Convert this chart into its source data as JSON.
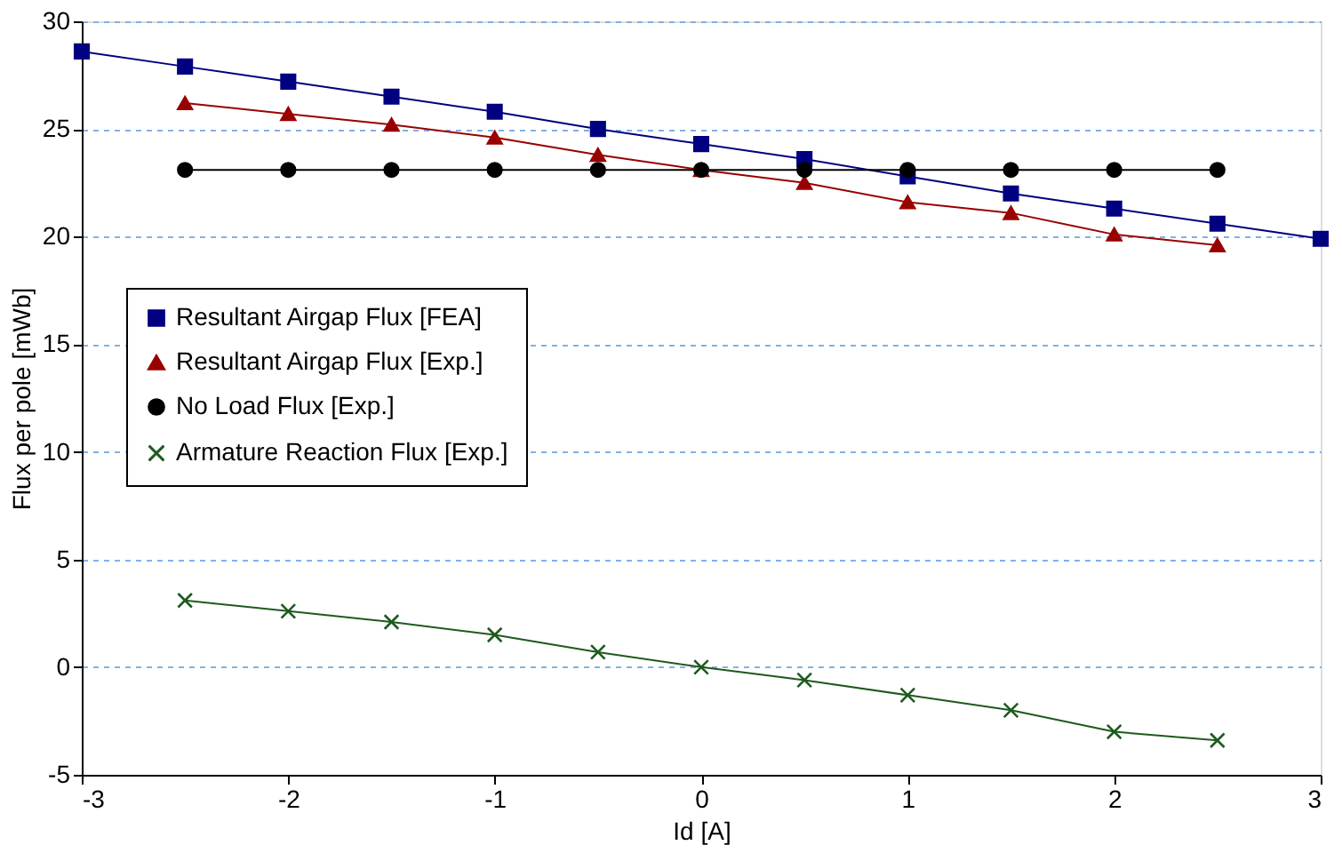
{
  "chart_data": {
    "type": "line",
    "xlabel": "Id [A]",
    "ylabel": "Flux per pole [mWb]",
    "xlim": [
      -3,
      3
    ],
    "xticks": [
      -3,
      -2,
      -1,
      0,
      1,
      2,
      3
    ],
    "ylim": [
      -5,
      30
    ],
    "yticks": [
      -5,
      0,
      5,
      10,
      15,
      20,
      25,
      30
    ],
    "grid": "y",
    "legend": "left",
    "series": [
      {
        "name": "Resultant Airgap Flux [FEA]",
        "color": "#000080",
        "marker": "square",
        "x": [
          -3,
          -2.5,
          -2,
          -1.5,
          -1,
          -0.5,
          0,
          0.5,
          1,
          1.5,
          2,
          2.5,
          3
        ],
        "values": [
          28.6,
          27.9,
          27.2,
          26.5,
          25.8,
          25.0,
          24.3,
          23.6,
          22.8,
          22.0,
          21.3,
          20.6,
          19.9
        ]
      },
      {
        "name": "Resultant Airgap Flux [Exp.]",
        "color": "#990000",
        "marker": "triangle",
        "x": [
          -2.5,
          -2,
          -1.5,
          -1,
          -0.5,
          0,
          0.5,
          1,
          1.5,
          2,
          2.5
        ],
        "values": [
          26.2,
          25.7,
          25.2,
          24.6,
          23.8,
          23.1,
          22.5,
          21.6,
          21.1,
          20.1,
          19.6
        ]
      },
      {
        "name": "No Load Flux [Exp.]",
        "color": "#000000",
        "marker": "circle",
        "x": [
          -2.5,
          -2,
          -1.5,
          -1,
          -0.5,
          0,
          0.5,
          1,
          1.5,
          2,
          2.5
        ],
        "values": [
          23.1,
          23.1,
          23.1,
          23.1,
          23.1,
          23.1,
          23.1,
          23.1,
          23.1,
          23.1,
          23.1
        ]
      },
      {
        "name": "Armature Reaction Flux [Exp.]",
        "color": "#1e5a1e",
        "marker": "cross",
        "x": [
          -2.5,
          -2,
          -1.5,
          -1,
          -0.5,
          0,
          0.5,
          1,
          1.5,
          2,
          2.5
        ],
        "values": [
          3.1,
          2.6,
          2.1,
          1.5,
          0.7,
          0.0,
          -0.6,
          -1.3,
          -2.0,
          -3.0,
          -3.4
        ]
      }
    ]
  }
}
